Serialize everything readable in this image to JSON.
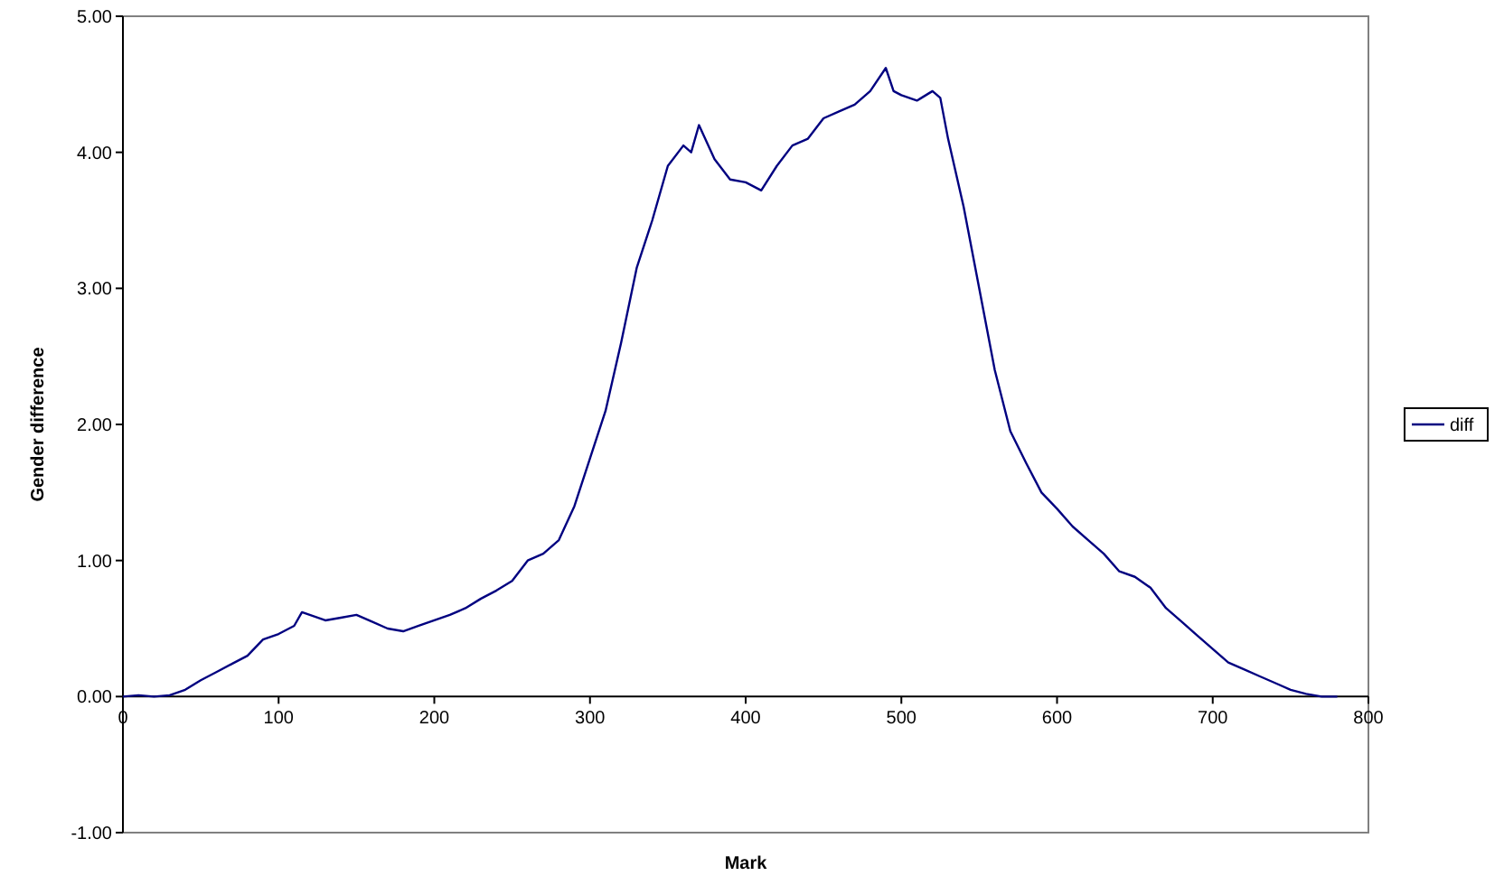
{
  "chart_data": {
    "type": "line",
    "xlabel": "Mark",
    "ylabel": "Gender difference",
    "xlim": [
      0,
      800
    ],
    "xticks": [
      0,
      100,
      200,
      300,
      400,
      500,
      600,
      700,
      800
    ],
    "ylim": [
      -1,
      5
    ],
    "yticks": [
      {
        "value": -1,
        "label": "-1.00"
      },
      {
        "value": 0,
        "label": "0.00"
      },
      {
        "value": 1,
        "label": "1.00"
      },
      {
        "value": 2,
        "label": "2.00"
      },
      {
        "value": 3,
        "label": "3.00"
      },
      {
        "value": 4,
        "label": "4.00"
      },
      {
        "value": 5,
        "label": "5.00"
      }
    ],
    "grid": false,
    "legend": "right",
    "marker": "none",
    "line_style": "solid",
    "series": [
      {
        "name": "diff",
        "color": "#000080",
        "x": [
          0,
          10,
          20,
          30,
          40,
          50,
          60,
          70,
          80,
          90,
          100,
          110,
          115,
          120,
          130,
          140,
          150,
          160,
          170,
          180,
          190,
          200,
          210,
          220,
          230,
          240,
          250,
          260,
          270,
          280,
          290,
          300,
          310,
          320,
          330,
          340,
          350,
          360,
          365,
          370,
          380,
          390,
          400,
          410,
          420,
          430,
          440,
          450,
          460,
          470,
          480,
          490,
          495,
          500,
          510,
          520,
          525,
          530,
          540,
          550,
          560,
          570,
          580,
          590,
          600,
          610,
          620,
          630,
          640,
          650,
          660,
          670,
          680,
          690,
          700,
          710,
          720,
          730,
          740,
          750,
          760,
          770,
          780
        ],
        "values": [
          0,
          0.01,
          0,
          0.01,
          0.05,
          0.12,
          0.18,
          0.24,
          0.3,
          0.42,
          0.46,
          0.52,
          0.62,
          0.6,
          0.56,
          0.58,
          0.6,
          0.55,
          0.5,
          0.48,
          0.52,
          0.56,
          0.6,
          0.65,
          0.72,
          0.78,
          0.85,
          1.0,
          1.05,
          1.15,
          1.4,
          1.75,
          2.1,
          2.6,
          3.15,
          3.5,
          3.9,
          4.05,
          4.0,
          4.2,
          3.95,
          3.8,
          3.78,
          3.72,
          3.9,
          4.05,
          4.1,
          4.25,
          4.3,
          4.35,
          4.45,
          4.62,
          4.45,
          4.42,
          4.38,
          4.45,
          4.4,
          4.1,
          3.6,
          3.0,
          2.4,
          1.95,
          1.72,
          1.5,
          1.38,
          1.25,
          1.15,
          1.05,
          0.92,
          0.88,
          0.8,
          0.65,
          0.55,
          0.45,
          0.35,
          0.25,
          0.2,
          0.15,
          0.1,
          0.05,
          0.02,
          0,
          0
        ]
      }
    ]
  }
}
